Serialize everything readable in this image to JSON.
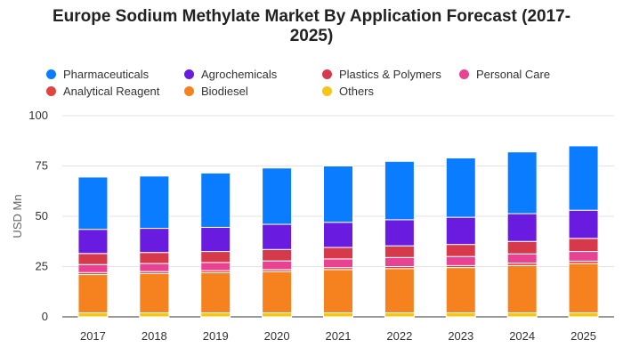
{
  "chart_data": {
    "type": "bar",
    "stacked": true,
    "title": "Europe Sodium Methylate Market By Application Forecast (2017-2025)",
    "xlabel": "",
    "ylabel": "USD Mn",
    "ylim": [
      0,
      100
    ],
    "yticks": [
      "0",
      "25",
      "50",
      "75",
      "100"
    ],
    "grid": true,
    "legend_position": "top",
    "categories": [
      "2017",
      "2018",
      "2019",
      "2020",
      "2021",
      "2022",
      "2023",
      "2024",
      "2025"
    ],
    "legend_order": [
      "Pharmaceuticals",
      "Agrochemicals",
      "Plastics & Polymers",
      "Personal Care",
      "Analytical Reagent",
      "Biodiesel",
      "Others"
    ],
    "series": [
      {
        "name": "Others",
        "color": "#f5c518",
        "values": [
          2.0,
          2.0,
          2.0,
          2.0,
          2.0,
          2.0,
          2.0,
          2.0,
          2.0
        ]
      },
      {
        "name": "Biodiesel",
        "color": "#f5821f",
        "values": [
          19.0,
          19.5,
          20.0,
          20.5,
          21.5,
          22.0,
          22.5,
          23.5,
          24.5
        ]
      },
      {
        "name": "Analytical Reagent",
        "color": "#e0443e",
        "values": [
          1.0,
          1.0,
          1.0,
          1.0,
          1.0,
          1.0,
          1.0,
          1.2,
          1.2
        ]
      },
      {
        "name": "Personal Care",
        "color": "#e84393",
        "values": [
          4.0,
          4.0,
          4.0,
          4.3,
          4.3,
          4.5,
          4.5,
          4.6,
          4.8
        ]
      },
      {
        "name": "Plastics & Polymers",
        "color": "#d63a4a",
        "values": [
          5.5,
          5.5,
          5.5,
          5.7,
          5.7,
          5.8,
          6.0,
          6.2,
          6.5
        ]
      },
      {
        "name": "Agrochemicals",
        "color": "#6a1be0",
        "values": [
          12.0,
          12.0,
          12.0,
          12.5,
          12.5,
          13.0,
          13.5,
          13.8,
          14.0
        ]
      },
      {
        "name": "Pharmaceuticals",
        "color": "#0a7cff",
        "values": [
          26.0,
          26.0,
          27.0,
          28.0,
          28.0,
          29.0,
          29.5,
          30.7,
          32.0
        ]
      }
    ]
  }
}
